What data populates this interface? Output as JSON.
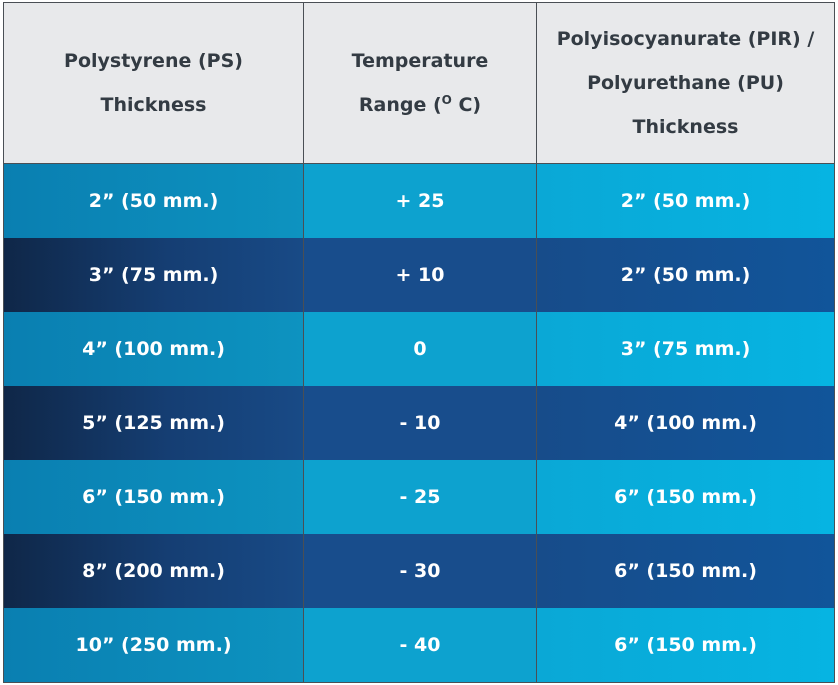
{
  "header": {
    "col1": "Polystyrene (PS)\nThickness",
    "col2_line1": "Temperature",
    "col2_line2_pre": "Range (",
    "col2_sup": "O",
    "col2_line2_post": " C)",
    "col3": "Polyisocyanurate (PIR) /\nPolyurethane (PU)\nThickness"
  },
  "rows": [
    {
      "ps": "2” (50 mm.)",
      "temp": "+ 25",
      "pir": "2” (50 mm.)",
      "shade": "light"
    },
    {
      "ps": "3” (75 mm.)",
      "temp": "+ 10",
      "pir": "2” (50 mm.)",
      "shade": "dark"
    },
    {
      "ps": "4” (100 mm.)",
      "temp": "0",
      "pir": "3” (75 mm.)",
      "shade": "light"
    },
    {
      "ps": "5” (125 mm.)",
      "temp": "- 10",
      "pir": "4” (100 mm.)",
      "shade": "dark"
    },
    {
      "ps": "6” (150 mm.)",
      "temp": "- 25",
      "pir": "6” (150 mm.)",
      "shade": "light"
    },
    {
      "ps": "8” (200 mm.)",
      "temp": "- 30",
      "pir": "6” (150 mm.)",
      "shade": "dark"
    },
    {
      "ps": "10” (250 mm.)",
      "temp": "- 40",
      "pir": "6” (150 mm.)",
      "shade": "light"
    }
  ],
  "colors": {
    "header_bg": "#e8e9eb",
    "header_text": "#333b43",
    "light_band": "#0da2cf",
    "dark_band": "#184d8c",
    "border": "#4a4f55"
  }
}
